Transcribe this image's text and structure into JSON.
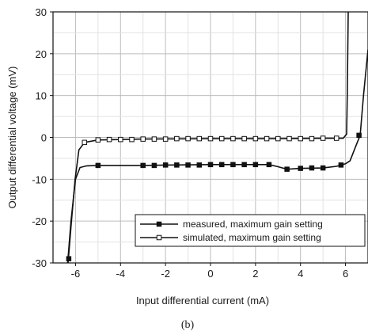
{
  "chart_data": {
    "type": "line",
    "title": "",
    "caption": "(b)",
    "xlabel": "Input differential current (mA)",
    "ylabel": "Output differential voltage (mV)",
    "xlim": [
      -7,
      7
    ],
    "ylim": [
      -30,
      30
    ],
    "xticks": [
      -6,
      -4,
      -2,
      0,
      2,
      4,
      6
    ],
    "yticks": [
      -30,
      -20,
      -10,
      0,
      10,
      20,
      30
    ],
    "grid": true,
    "legend_position": "bottom-right",
    "series": [
      {
        "name": "measured, maximum gain setting",
        "marker": "filled-square",
        "color": "#111111",
        "curve": [
          [
            -6.35,
            -30
          ],
          [
            -6.2,
            -20
          ],
          [
            -6.0,
            -10
          ],
          [
            -5.8,
            -7.2
          ],
          [
            -5.5,
            -6.8
          ],
          [
            -5,
            -6.7
          ],
          [
            -3,
            -6.7
          ],
          [
            -2,
            -6.6
          ],
          [
            0,
            -6.5
          ],
          [
            2,
            -6.5
          ],
          [
            2.6,
            -6.5
          ],
          [
            3.0,
            -7.0
          ],
          [
            3.4,
            -7.6
          ],
          [
            4,
            -7.4
          ],
          [
            5,
            -7.3
          ],
          [
            5.6,
            -6.9
          ],
          [
            6.0,
            -6.3
          ],
          [
            6.2,
            -5.6
          ],
          [
            6.5,
            -1.5
          ],
          [
            6.65,
            0.5
          ],
          [
            6.8,
            10
          ],
          [
            7.0,
            21
          ]
        ],
        "points": [
          [
            -6.3,
            -29
          ],
          [
            -5,
            -6.7
          ],
          [
            -3,
            -6.7
          ],
          [
            -2.5,
            -6.7
          ],
          [
            -2,
            -6.6
          ],
          [
            -1.5,
            -6.6
          ],
          [
            -1,
            -6.6
          ],
          [
            -0.5,
            -6.6
          ],
          [
            0,
            -6.5
          ],
          [
            0.5,
            -6.5
          ],
          [
            1,
            -6.5
          ],
          [
            1.5,
            -6.5
          ],
          [
            2,
            -6.5
          ],
          [
            2.6,
            -6.5
          ],
          [
            3.4,
            -7.6
          ],
          [
            4,
            -7.4
          ],
          [
            4.5,
            -7.3
          ],
          [
            5,
            -7.3
          ],
          [
            5.8,
            -6.6
          ],
          [
            6.6,
            0.5
          ]
        ]
      },
      {
        "name": "simulated, maximum gain setting",
        "marker": "open-square",
        "color": "#111111",
        "curve": [
          [
            -6.33,
            -30
          ],
          [
            -6.18,
            -20
          ],
          [
            -6.02,
            -10
          ],
          [
            -5.85,
            -3
          ],
          [
            -5.6,
            -1.2
          ],
          [
            -5,
            -0.6
          ],
          [
            -3,
            -0.4
          ],
          [
            0,
            -0.3
          ],
          [
            3,
            -0.3
          ],
          [
            5,
            -0.2
          ],
          [
            5.9,
            -0.2
          ],
          [
            6.05,
            0.8
          ],
          [
            6.08,
            10
          ],
          [
            6.1,
            20
          ],
          [
            6.12,
            30
          ]
        ],
        "points": [
          [
            -5.6,
            -1.2
          ],
          [
            -5,
            -0.6
          ],
          [
            -4.5,
            -0.5
          ],
          [
            -4,
            -0.5
          ],
          [
            -3.5,
            -0.5
          ],
          [
            -3,
            -0.4
          ],
          [
            -2.5,
            -0.4
          ],
          [
            -2,
            -0.4
          ],
          [
            -1.5,
            -0.3
          ],
          [
            -1,
            -0.3
          ],
          [
            -0.5,
            -0.3
          ],
          [
            0,
            -0.3
          ],
          [
            0.5,
            -0.3
          ],
          [
            1,
            -0.3
          ],
          [
            1.5,
            -0.3
          ],
          [
            2,
            -0.3
          ],
          [
            2.5,
            -0.3
          ],
          [
            3,
            -0.3
          ],
          [
            3.5,
            -0.3
          ],
          [
            4,
            -0.3
          ],
          [
            4.5,
            -0.3
          ],
          [
            5,
            -0.2
          ],
          [
            5.6,
            -0.2
          ]
        ]
      }
    ]
  }
}
